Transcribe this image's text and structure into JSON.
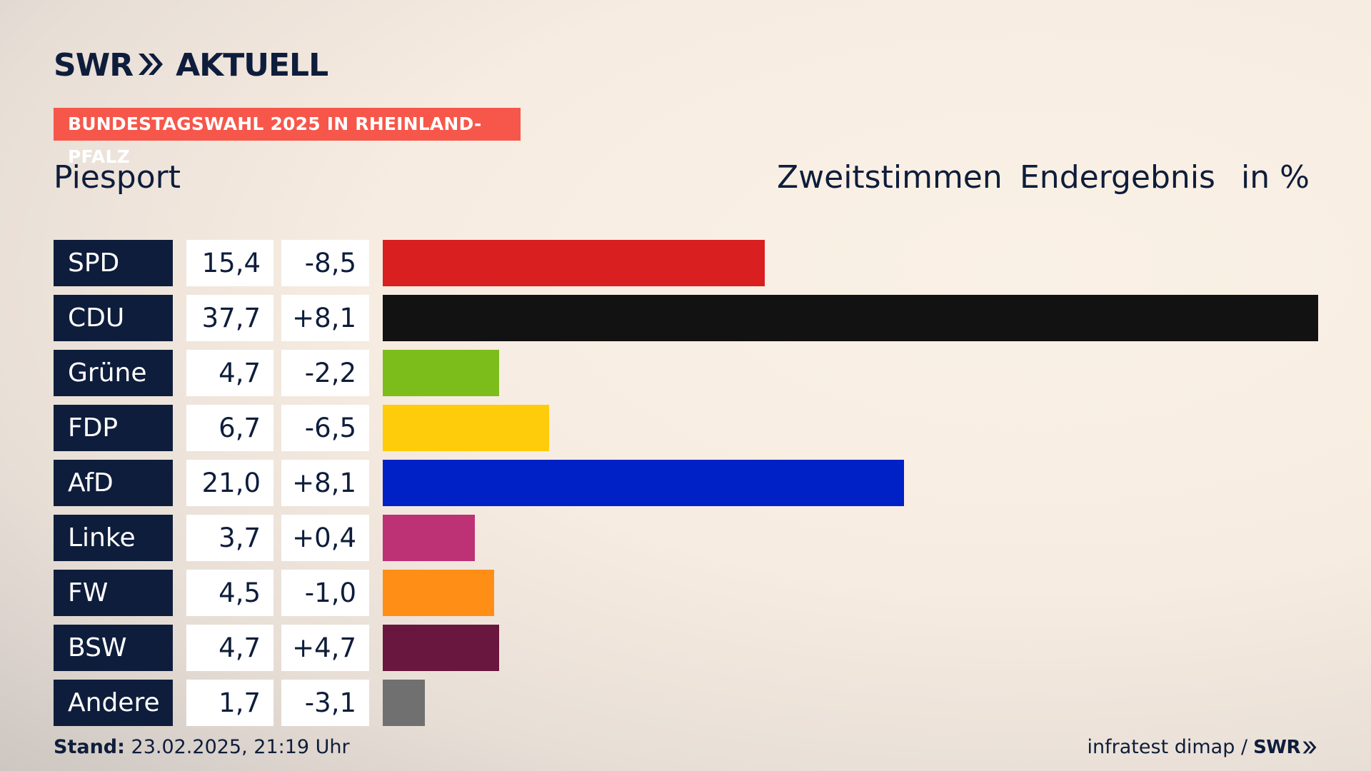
{
  "brand": {
    "name_left": "SWR",
    "name_right": "AKTUELL",
    "source_logo": "SWR"
  },
  "kicker": "BUNDESTAGSWAHL 2025 IN RHEINLAND-PFALZ",
  "place": "Piesport",
  "header": {
    "col1": "Zweitstimmen",
    "col2": "Endergebnis",
    "col3": "in %"
  },
  "footer": {
    "stand_label": "Stand:",
    "stand_value": "23.02.2025, 21:19 Uhr",
    "source": "infratest dimap /"
  },
  "chart_data": {
    "type": "bar",
    "orientation": "horizontal",
    "categories": [
      "SPD",
      "CDU",
      "Grüne",
      "FDP",
      "AfD",
      "Linke",
      "FW",
      "BSW",
      "Andere"
    ],
    "values_text": [
      "15,4",
      "37,7",
      "4,7",
      "6,7",
      "21,0",
      "3,7",
      "4,5",
      "4,7",
      "1,7"
    ],
    "changes_text": [
      "-8,5",
      "+8,1",
      "-2,2",
      "-6,5",
      "+8,1",
      "+0,4",
      "-1,0",
      "+4,7",
      "-3,1"
    ],
    "values": [
      15.4,
      37.7,
      4.7,
      6.7,
      21.0,
      3.7,
      4.5,
      4.7,
      1.7
    ],
    "changes": [
      -8.5,
      8.1,
      -2.2,
      -6.5,
      8.1,
      0.4,
      -1.0,
      4.7,
      -3.1
    ],
    "colors": [
      "#d91f1f",
      "#121212",
      "#7cbd1c",
      "#fecc0a",
      "#0021c6",
      "#bd3175",
      "#ff8e17",
      "#6a173f",
      "#707070"
    ],
    "xlim": [
      0,
      37.7
    ]
  }
}
